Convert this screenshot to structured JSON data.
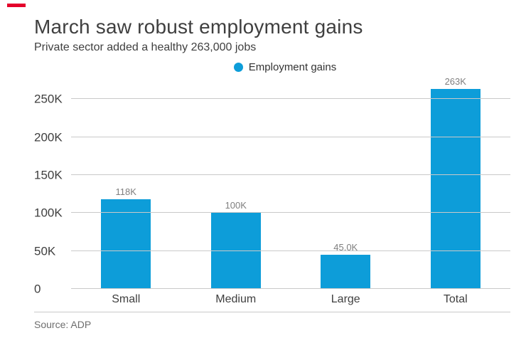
{
  "brand_color": "#e4002b",
  "chart_data": {
    "type": "bar",
    "title": "March saw robust employment gains",
    "subtitle": "Private sector added a healthy 263,000 jobs",
    "legend": "Employment gains",
    "source": "Source: ADP",
    "categories": [
      "Small",
      "Medium",
      "Large",
      "Total"
    ],
    "values": [
      118000,
      100000,
      45000,
      263000
    ],
    "value_labels": [
      "118K",
      "100K",
      "45.0K",
      "263K"
    ],
    "ylim": [
      0,
      270000
    ],
    "yticks": [
      0,
      50000,
      100000,
      150000,
      200000,
      250000
    ],
    "ytick_labels": [
      "0",
      "50K",
      "100K",
      "150K",
      "200K",
      "250K"
    ],
    "bar_color": "#0d9dd9",
    "grid": true,
    "legend_position": "top-center"
  }
}
